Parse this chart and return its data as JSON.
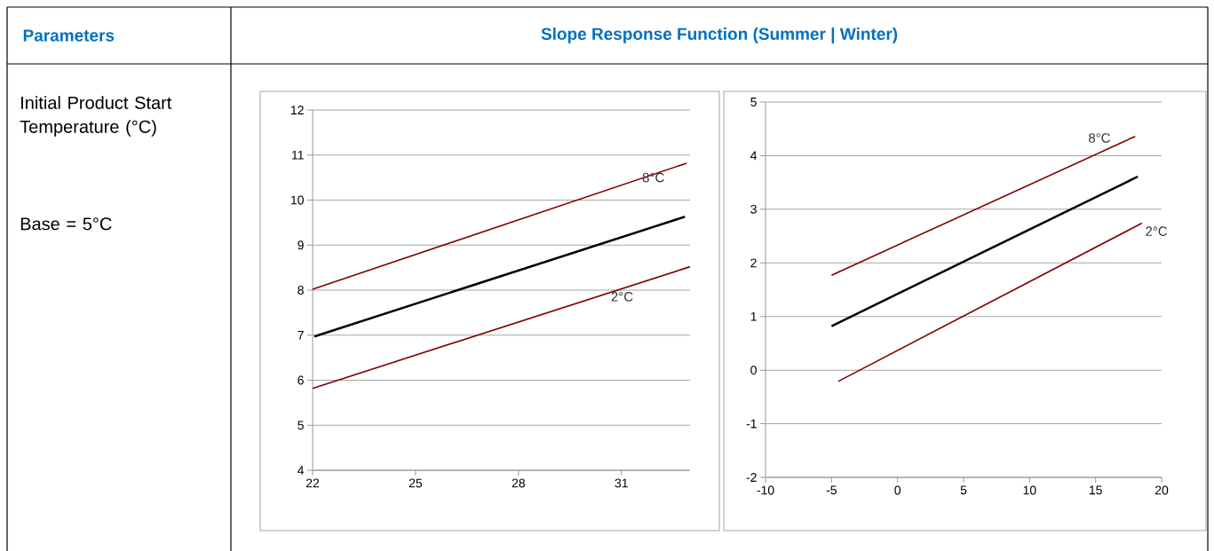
{
  "chart_data": [
    {
      "type": "line",
      "title": "Slope Response Function (Summer | Winter)",
      "annotations": [
        "Parameters",
        "Initial Product Start Temperature (°C)",
        "Base = 5°C"
      ],
      "series": [
        {
          "name": "8°C",
          "color": "#800000",
          "x": [
            22,
            32.9
          ],
          "values": [
            8.02,
            10.82
          ]
        },
        {
          "color": "#000000",
          "x": [
            22.05,
            32.85
          ],
          "values": [
            6.97,
            9.63
          ]
        },
        {
          "name": "2°C",
          "color": "#800000",
          "x": [
            22,
            33
          ],
          "values": [
            5.82,
            8.52
          ]
        }
      ],
      "xlim": [
        22,
        33
      ],
      "xticks": [
        22,
        25,
        28,
        31
      ],
      "ylim": [
        4,
        12
      ],
      "yticks": [
        4,
        5,
        6,
        7,
        8,
        9,
        10,
        11,
        12
      ],
      "grid": "y"
    },
    {
      "type": "line",
      "series": [
        {
          "name": "8°C",
          "color": "#800000",
          "x": [
            -5,
            18
          ],
          "values": [
            1.77,
            4.36
          ]
        },
        {
          "color": "#000000",
          "x": [
            -5,
            18.2
          ],
          "values": [
            0.82,
            3.61
          ]
        },
        {
          "name": "2°C",
          "color": "#800000",
          "x": [
            -4.5,
            18.5
          ],
          "values": [
            -0.21,
            2.74
          ]
        }
      ],
      "xlim": [
        -10,
        20
      ],
      "xticks": [
        -10,
        -5,
        0,
        5,
        10,
        15,
        20
      ],
      "ylim": [
        -2,
        5
      ],
      "yticks": [
        -2,
        -1,
        0,
        1,
        2,
        3,
        4,
        5
      ],
      "grid": "y"
    }
  ]
}
